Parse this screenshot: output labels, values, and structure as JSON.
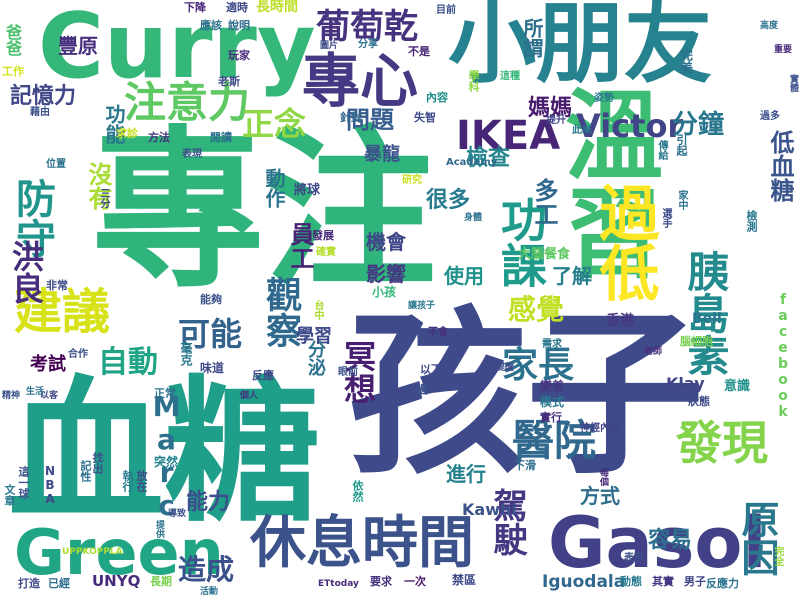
{
  "words": [
    {
      "text": "專注",
      "color": "#2fb47c"
    },
    {
      "text": "孩子",
      "color": "#3e4a89"
    },
    {
      "text": "血糖",
      "color": "#1f9e89"
    },
    {
      "text": "小朋友",
      "color": "#26828e"
    },
    {
      "text": "溫習",
      "color": "#3dbc74"
    },
    {
      "text": "Curry",
      "color": "#35b779"
    },
    {
      "text": "Gasol",
      "color": "#424086"
    },
    {
      "text": "Green",
      "color": "#21a685"
    },
    {
      "text": "過低",
      "color": "#fde725"
    },
    {
      "text": "休息時間",
      "color": "#3b528b"
    },
    {
      "text": "專心",
      "color": "#443983"
    },
    {
      "text": "注意力",
      "color": "#5ec962"
    },
    {
      "text": "建議",
      "color": "#d8e219"
    },
    {
      "text": "功課",
      "color": "#1e9b8a"
    },
    {
      "text": "發現",
      "color": "#84d44b"
    },
    {
      "text": "醫院",
      "color": "#31688e"
    },
    {
      "text": "葡萄乾",
      "color": "#46327e"
    },
    {
      "text": "IKEA",
      "color": "#482677"
    },
    {
      "text": "防守",
      "color": "#1f958b"
    },
    {
      "text": "胰島素",
      "color": "#238a8d"
    },
    {
      "text": "家長",
      "color": "#2c728e"
    },
    {
      "text": "Victor",
      "color": "#414487"
    },
    {
      "text": "原因",
      "color": "#2a788e"
    },
    {
      "text": "駕駛",
      "color": "#453781"
    },
    {
      "text": "觀察",
      "color": "#30698e"
    },
    {
      "text": "正念",
      "color": "#8fd744"
    },
    {
      "text": "可能",
      "color": "#33638d"
    },
    {
      "text": "感覺",
      "color": "#c2df23"
    },
    {
      "text": "冥想",
      "color": "#481f70"
    },
    {
      "text": "洪良",
      "color": "#472d7b"
    },
    {
      "text": "自動",
      "color": "#20a486"
    },
    {
      "text": "Marc",
      "color": "#2d708e"
    },
    {
      "text": "分鐘",
      "color": "#2a768e"
    },
    {
      "text": "問題",
      "color": "#365d8d"
    },
    {
      "text": "記憶力",
      "color": "#404688"
    },
    {
      "text": "沒有",
      "color": "#aadc32"
    },
    {
      "text": "檢查",
      "color": "#25858e"
    },
    {
      "text": "低血糖",
      "color": "#3a548c"
    },
    {
      "text": "多工",
      "color": "#31688e"
    },
    {
      "text": "很多",
      "color": "#287c8e"
    },
    {
      "text": "員工",
      "color": "#482475"
    },
    {
      "text": "動作",
      "color": "#2c738e"
    },
    {
      "text": "造成",
      "color": "#3b518b"
    },
    {
      "text": "能力",
      "color": "#3c4f8a"
    },
    {
      "text": "容易",
      "color": "#2d718e"
    },
    {
      "text": "方式",
      "color": "#2f6c8e"
    },
    {
      "text": "進行",
      "color": "#26818e"
    },
    {
      "text": "考試",
      "color": "#440154"
    },
    {
      "text": "機會",
      "color": "#3f4788"
    },
    {
      "text": "影響",
      "color": "#453882"
    },
    {
      "text": "使用",
      "color": "#21918c"
    },
    {
      "text": "了解",
      "color": "#277f8e"
    },
    {
      "text": "學習",
      "color": "#3e4989"
    },
    {
      "text": "分泌",
      "color": "#2c728e"
    },
    {
      "text": "暴龍",
      "color": "#3b528b"
    },
    {
      "text": "所謂",
      "color": "#2e6f8e"
    },
    {
      "text": "媽媽",
      "color": "#481b6d"
    },
    {
      "text": "豐原",
      "color": "#46307e"
    },
    {
      "text": "功能",
      "color": "#2a778e"
    },
    {
      "text": "Kawhi",
      "color": "#3b528b"
    },
    {
      "text": "Iguodala",
      "color": "#31688e"
    },
    {
      "text": "UNYQ",
      "color": "#472a7a"
    },
    {
      "text": "Klay",
      "color": "#414487"
    },
    {
      "text": "Bell",
      "color": "#2a768e"
    },
    {
      "text": "香港",
      "color": "#453781"
    },
    {
      "text": "facebook",
      "color": "#6ccd5a"
    },
    {
      "text": "Academy",
      "color": "#31688e"
    },
    {
      "text": "ETtoday",
      "color": "#472c7a"
    },
    {
      "text": "UPPKOPPLA",
      "color": "#aadc32"
    },
    {
      "text": "NBA",
      "color": "#3e4a89"
    },
    {
      "text": "長時間",
      "color": "#bddf26"
    },
    {
      "text": "工作",
      "color": "#d2e21b"
    },
    {
      "text": "爸爸",
      "color": "#4ac16d"
    },
    {
      "text": "藉由",
      "color": "#3b528b"
    },
    {
      "text": "將球",
      "color": "#3f4889"
    },
    {
      "text": "發展",
      "color": "#482878"
    },
    {
      "text": "大腦餐食",
      "color": "#5ec962"
    },
    {
      "text": "研究",
      "color": "#c8e020"
    },
    {
      "text": "確實",
      "color": "#b5de2b"
    },
    {
      "text": "小孩",
      "color": "#35b779"
    },
    {
      "text": "台中",
      "color": "#addc30"
    },
    {
      "text": "毫克",
      "color": "#2a788e"
    },
    {
      "text": "味道",
      "color": "#3e4989"
    },
    {
      "text": "反應",
      "color": "#404588"
    },
    {
      "text": "正常",
      "color": "#2c718e"
    },
    {
      "text": "以下",
      "color": "#3e4a89"
    },
    {
      "text": "一邊",
      "color": "#3b528b"
    },
    {
      "text": "變差",
      "color": "#453781"
    },
    {
      "text": "模式",
      "color": "#2a788e"
    },
    {
      "text": "實行",
      "color": "#46307e"
    },
    {
      "text": "狀態",
      "color": "#3e4989"
    },
    {
      "text": "意識",
      "color": "#21918c"
    },
    {
      "text": "神經內科",
      "color": "#414487"
    },
    {
      "text": "下滑",
      "color": "#2d708e"
    },
    {
      "text": "突然",
      "color": "#25858e"
    },
    {
      "text": "依然",
      "color": "#1f9a8a"
    },
    {
      "text": "長期",
      "color": "#7ad151"
    },
    {
      "text": "打造",
      "color": "#3e4a89"
    },
    {
      "text": "已經",
      "color": "#2e6e8e"
    },
    {
      "text": "要求",
      "color": "#46327e"
    },
    {
      "text": "一次",
      "color": "#481a6c"
    },
    {
      "text": "禁區",
      "color": "#3e4989"
    },
    {
      "text": "動態",
      "color": "#2a788e"
    },
    {
      "text": "其實",
      "color": "#443983"
    },
    {
      "text": "男子",
      "color": "#404588"
    },
    {
      "text": "完全",
      "color": "#9bd93c"
    },
    {
      "text": "方法",
      "color": "#46307e"
    },
    {
      "text": "求診",
      "color": "#c5e021"
    },
    {
      "text": "閱讀",
      "color": "#2d718e"
    },
    {
      "text": "表現",
      "color": "#3b528b"
    },
    {
      "text": "玩家",
      "color": "#472d7b"
    },
    {
      "text": "老斯",
      "color": "#3e4a89"
    },
    {
      "text": "下降",
      "color": "#482878"
    },
    {
      "text": "應該",
      "color": "#2c728e"
    },
    {
      "text": "適時",
      "color": "#3e4a89"
    },
    {
      "text": "說明",
      "color": "#2f6c8e"
    },
    {
      "text": "目前",
      "color": "#3b528b"
    },
    {
      "text": "分享",
      "color": "#2c728e"
    },
    {
      "text": "不是",
      "color": "#482677"
    },
    {
      "text": "學科",
      "color": "#8fd744"
    },
    {
      "text": "內容",
      "color": "#21918c"
    },
    {
      "text": "失智",
      "color": "#3e4a89"
    },
    {
      "text": "針對",
      "color": "#31688e"
    },
    {
      "text": "這種",
      "color": "#35b779"
    },
    {
      "text": "提升",
      "color": "#404588"
    },
    {
      "text": "此來",
      "color": "#2a788e"
    },
    {
      "text": "過多",
      "color": "#3b528b"
    },
    {
      "text": "引起",
      "color": "#2c728e"
    },
    {
      "text": "完美",
      "color": "#2c728e"
    },
    {
      "text": "老師",
      "color": "#472d7b"
    },
    {
      "text": "提醒",
      "color": "#3e4a89"
    },
    {
      "text": "需求",
      "color": "#2a788e"
    },
    {
      "text": "不會",
      "color": "#46327e"
    },
    {
      "text": "合作",
      "color": "#3b528b"
    },
    {
      "text": "生活",
      "color": "#2c728e"
    },
    {
      "text": "以客",
      "color": "#3e4a89"
    },
    {
      "text": "文章",
      "color": "#2a788e"
    },
    {
      "text": "這一球",
      "color": "#3b528b"
    },
    {
      "text": "記性",
      "color": "#2c728e"
    },
    {
      "text": "找出",
      "color": "#3b528b"
    },
    {
      "text": "執行",
      "color": "#2a788e"
    },
    {
      "text": "放在",
      "color": "#3e4a89"
    },
    {
      "text": "每個",
      "color": "#482878"
    },
    {
      "text": "提供",
      "color": "#2c728e"
    },
    {
      "text": "導致",
      "color": "#3b528b"
    },
    {
      "text": "活動",
      "color": "#2c728e"
    },
    {
      "text": "表示",
      "color": "#3b528b"
    },
    {
      "text": "反應力",
      "color": "#2c728e"
    },
    {
      "text": "能夠",
      "color": "#3b528b"
    },
    {
      "text": "非常",
      "color": "#3e4a89"
    },
    {
      "text": "姿勢",
      "color": "#2a788e"
    },
    {
      "text": "個人",
      "color": "#46327e"
    },
    {
      "text": "腦細胞",
      "color": "#7ad151"
    },
    {
      "text": "高度",
      "color": "#2c728e"
    },
    {
      "text": "重要",
      "color": "#482878"
    },
    {
      "text": "實體",
      "color": "#3b528b"
    },
    {
      "text": "家中",
      "color": "#2c728e"
    },
    {
      "text": "選手",
      "color": "#3e4a89"
    },
    {
      "text": "傳給",
      "color": "#2a788e"
    },
    {
      "text": "眼前",
      "color": "#3b528b"
    },
    {
      "text": "位置",
      "color": "#2c728e"
    },
    {
      "text": "三分",
      "color": "#3e4a89"
    },
    {
      "text": "檢測",
      "color": "#2a788e"
    },
    {
      "text": "精神",
      "color": "#3b528b"
    },
    {
      "text": "身體",
      "color": "#2c728e"
    },
    {
      "text": "圖片",
      "color": "#3e4a89"
    },
    {
      "text": "讓孩子",
      "color": "#2a788e"
    }
  ]
}
